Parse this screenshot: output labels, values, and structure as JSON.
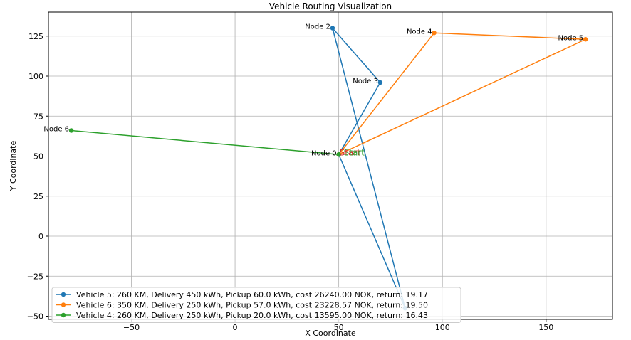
{
  "chart_data": {
    "type": "line",
    "title": "Vehicle Routing Visualization",
    "xlabel": "X Coordinate",
    "ylabel": "Y Coordinate",
    "xlim": [
      -90,
      182
    ],
    "ylim": [
      -52,
      140
    ],
    "grid": true,
    "legend_position": "lower-left",
    "x_ticks": [
      -50,
      0,
      50,
      100,
      150
    ],
    "x_tick_labels": [
      "−50",
      "0",
      "50",
      "100",
      "150"
    ],
    "y_ticks": [
      -50,
      -25,
      0,
      25,
      50,
      75,
      100,
      125
    ],
    "y_tick_labels": [
      "−50",
      "−25",
      "0",
      "25",
      "50",
      "75",
      "100",
      "125"
    ],
    "nodes": [
      {
        "label": "Node 0",
        "x": 50,
        "y": 51
      },
      {
        "label": "Node 2",
        "x": 47,
        "y": 130
      },
      {
        "label": "Node 3",
        "x": 70,
        "y": 96
      },
      {
        "label": "Node 4",
        "x": 96,
        "y": 127
      },
      {
        "label": "Node 5",
        "x": 169,
        "y": 123
      },
      {
        "label": "Node 6",
        "x": -79,
        "y": 66
      }
    ],
    "start_labels": [
      {
        "text": "Start",
        "color": "#d62728"
      },
      {
        "text": "Start",
        "color": "#2ca02c"
      }
    ],
    "series": [
      {
        "name": "Vehicle 5: 260 KM, Delivery 450 kWh, Pickup 60.0 kWh, cost 26240.00 NOK, return: 19.17",
        "color": "#1f77b4",
        "points": [
          [
            50,
            51
          ],
          [
            70,
            96
          ],
          [
            47,
            130
          ],
          [
            82,
            -45
          ],
          [
            50,
            51
          ]
        ]
      },
      {
        "name": "Vehicle 6: 350 KM, Delivery 250 kWh, Pickup 57.0 kWh, cost 23228.57 NOK, return: 19.50",
        "color": "#ff7f0e",
        "points": [
          [
            50,
            51
          ],
          [
            96,
            127
          ],
          [
            169,
            123
          ],
          [
            50,
            51
          ]
        ]
      },
      {
        "name": "Vehicle 4: 260 KM, Delivery 250 kWh, Pickup 20.0 kWh, cost 13595.00 NOK, return: 16.43",
        "color": "#2ca02c",
        "points": [
          [
            50,
            51
          ],
          [
            -79,
            66
          ],
          [
            50,
            51
          ]
        ]
      }
    ]
  }
}
